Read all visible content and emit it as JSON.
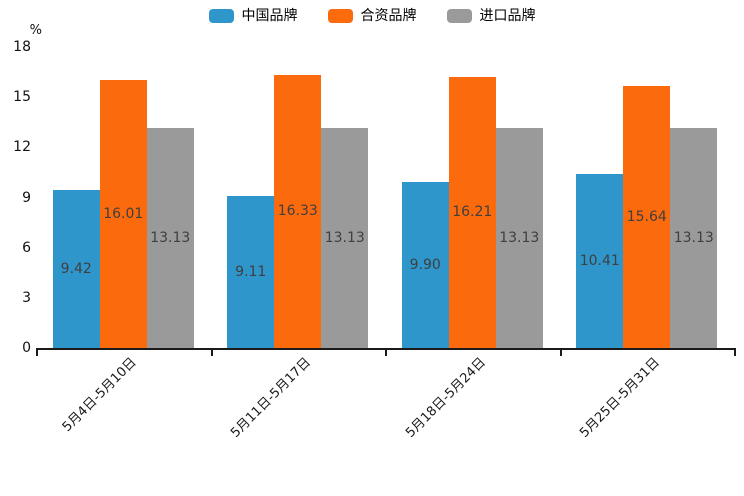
{
  "chart_data": {
    "type": "bar",
    "title": "",
    "xlabel": "",
    "ylabel": "%",
    "categories": [
      "5月4日-5月10日",
      "5月11日-5月17日",
      "5月18日-5月24日",
      "5月25日-5月31日"
    ],
    "series": [
      {
        "name": "中国品牌",
        "color": "#2F96CC",
        "values": [
          9.42,
          9.11,
          9.9,
          10.41
        ]
      },
      {
        "name": "合资品牌",
        "color": "#FB6A0D",
        "values": [
          16.01,
          16.33,
          16.21,
          15.64
        ]
      },
      {
        "name": "进口品牌",
        "color": "#9A9A9A",
        "values": [
          13.13,
          13.13,
          13.13,
          13.13
        ]
      }
    ],
    "yticks": [
      0,
      3,
      6,
      9,
      12,
      15,
      18
    ],
    "ylim": [
      0,
      18
    ],
    "grid": false,
    "legend_position": "top",
    "value_labels": true,
    "value_label_decimals": 2
  },
  "colors": {
    "axis": "#1a1a1a",
    "value_label": "#3f3f3f",
    "background": "#ffffff"
  }
}
